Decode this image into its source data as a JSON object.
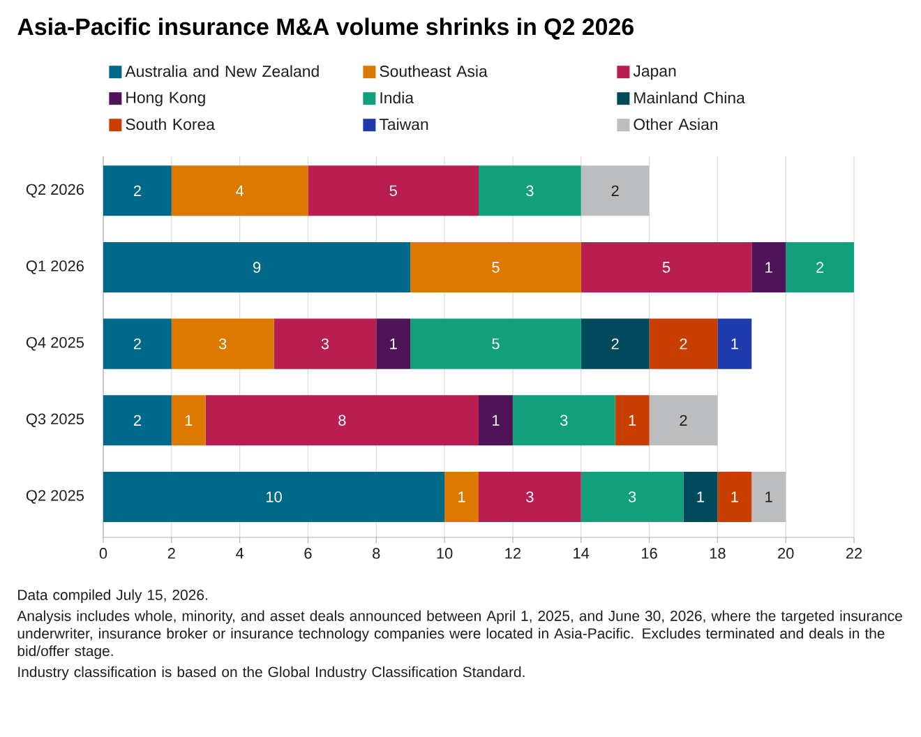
{
  "chart_data": {
    "type": "bar",
    "orientation": "horizontal",
    "stacked": true,
    "title": "Asia-Pacific insurance M&A volume shrinks in Q2 2026",
    "categories": [
      "Q2 2026",
      "Q1 2026",
      "Q4 2025",
      "Q3 2025",
      "Q2 2025"
    ],
    "series": [
      {
        "name": "Australia and New Zealand",
        "color": "#00698a",
        "values": [
          2,
          9,
          2,
          2,
          10
        ]
      },
      {
        "name": "Southeast Asia",
        "color": "#dd7900",
        "values": [
          4,
          5,
          3,
          1,
          1
        ]
      },
      {
        "name": "Japan",
        "color": "#b81e50",
        "values": [
          5,
          5,
          3,
          8,
          3
        ]
      },
      {
        "name": "Hong Kong",
        "color": "#4f1457",
        "values": [
          null,
          1,
          1,
          1,
          null
        ]
      },
      {
        "name": "India",
        "color": "#11a07b",
        "values": [
          3,
          2,
          5,
          3,
          3
        ]
      },
      {
        "name": "Mainland China",
        "color": "#004a5b",
        "values": [
          null,
          null,
          2,
          null,
          1
        ]
      },
      {
        "name": "South Korea",
        "color": "#c83d00",
        "values": [
          null,
          null,
          2,
          1,
          1
        ]
      },
      {
        "name": "Taiwan",
        "color": "#1e3aab",
        "values": [
          null,
          null,
          1,
          null,
          null
        ]
      },
      {
        "name": "Other Asian",
        "color": "#bcbdbf",
        "values": [
          2,
          null,
          null,
          2,
          1
        ]
      }
    ],
    "xlim": [
      0,
      22
    ],
    "xticks": [
      0,
      2,
      4,
      6,
      8,
      10,
      12,
      14,
      16,
      18,
      20,
      22
    ],
    "grid": "x",
    "legend": "top",
    "data_labels": true,
    "annotations": [
      "Data compiled July 15, 2026.",
      "Analysis includes whole, minority, and asset deals announced between April 1, 2025, and June 30, 2026, where the targeted insurance underwriter, insurance broker or insurance technology companies were located in Asia-Pacific. Excludes terminated and deals in the bid/offer stage.",
      "Industry classification is based on the Global Industry Classification Standard."
    ]
  }
}
